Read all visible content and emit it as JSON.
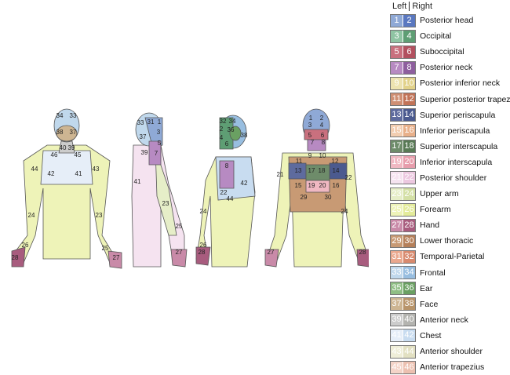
{
  "legend": {
    "left_label": "Left",
    "right_label": "Right",
    "items": [
      {
        "left": "1",
        "right": "2",
        "label": "Posterior head",
        "colors": [
          "#8fa9d6",
          "#5a78c0"
        ]
      },
      {
        "left": "3",
        "right": "4",
        "label": "Occipital",
        "colors": [
          "#8fc4a3",
          "#5e9e74"
        ]
      },
      {
        "left": "5",
        "right": "6",
        "label": "Suboccipital",
        "colors": [
          "#c9707e",
          "#b2505f"
        ]
      },
      {
        "left": "7",
        "right": "8",
        "label": "Posterior neck",
        "colors": [
          "#b78ac2",
          "#8e5f9e"
        ]
      },
      {
        "left": "9",
        "right": "10",
        "label": "Posterior inferior neck",
        "colors": [
          "#ede3b0",
          "#e2d28a"
        ]
      },
      {
        "left": "11",
        "right": "12",
        "label": "Superior posterior trapezius",
        "colors": [
          "#cf8f73",
          "#c27458"
        ]
      },
      {
        "left": "13",
        "right": "14",
        "label": "Superior periscapula",
        "colors": [
          "#5e6b9e",
          "#4b5a8f"
        ]
      },
      {
        "left": "15",
        "right": "16",
        "label": "Inferior periscapula",
        "colors": [
          "#f2cdb0",
          "#e8b08a"
        ]
      },
      {
        "left": "17",
        "right": "18",
        "label": "Superior interscapula",
        "colors": [
          "#6e8c6a",
          "#587a55"
        ]
      },
      {
        "left": "19",
        "right": "20",
        "label": "Inferior interscapula",
        "colors": [
          "#f0b8c2",
          "#e79dac"
        ]
      },
      {
        "left": "21",
        "right": "22",
        "label": "Posterior shoulder",
        "colors": [
          "#f5e3f0",
          "#ecc8e0"
        ]
      },
      {
        "left": "23",
        "right": "24",
        "label": "Upper arm",
        "colors": [
          "#e6eec8",
          "#d4e0a6"
        ]
      },
      {
        "left": "25",
        "right": "26",
        "label": "Forearm",
        "colors": [
          "#eef3b8",
          "#e3eb9a"
        ]
      },
      {
        "left": "27",
        "right": "28",
        "label": "Hand",
        "colors": [
          "#c98aa8",
          "#a85c7e"
        ]
      },
      {
        "left": "29",
        "right": "30",
        "label": "Lower thoracic",
        "colors": [
          "#c89a74",
          "#b5805a"
        ]
      },
      {
        "left": "31",
        "right": "32",
        "label": "Temporal-Parietal",
        "colors": [
          "#eaa88e",
          "#d88a6e"
        ]
      },
      {
        "left": "33",
        "right": "34",
        "label": "Frontal",
        "colors": [
          "#c0d8ec",
          "#98bee0"
        ]
      },
      {
        "left": "35",
        "right": "36",
        "label": "Ear",
        "colors": [
          "#8fbe85",
          "#6aa062"
        ]
      },
      {
        "left": "37",
        "right": "38",
        "label": "Face",
        "colors": [
          "#cdb592",
          "#b8946a"
        ]
      },
      {
        "left": "39",
        "right": "40",
        "label": "Anterior neck",
        "colors": [
          "#cccccc",
          "#b4b4b0"
        ]
      },
      {
        "left": "41",
        "right": "42",
        "label": "Chest",
        "colors": [
          "#e6eef8",
          "#c8dcf0"
        ]
      },
      {
        "left": "43",
        "right": "44",
        "label": "Anterior shoulder",
        "colors": [
          "#efeed8",
          "#e2e0c2"
        ]
      },
      {
        "left": "45",
        "right": "46",
        "label": "Anterior trapezius",
        "colors": [
          "#f4d4c8",
          "#ecc0b0"
        ]
      }
    ]
  },
  "figures": {
    "anterior": [
      "34",
      "33",
      "38",
      "37",
      "40",
      "39",
      "46",
      "45",
      "44",
      "43",
      "42",
      "41",
      "24",
      "23",
      "26",
      "25",
      "28",
      "27"
    ],
    "lateral": [
      "33",
      "31",
      "1",
      "3",
      "37",
      "5",
      "39",
      "7",
      "41",
      "23",
      "25",
      "27"
    ],
    "oblique": [
      "32",
      "34",
      "2",
      "4",
      "36",
      "38",
      "6",
      "8",
      "22",
      "44",
      "42",
      "24",
      "26",
      "28"
    ],
    "posterior": [
      "1",
      "2",
      "3",
      "4",
      "5",
      "6",
      "7",
      "8",
      "9",
      "10",
      "11",
      "12",
      "13",
      "14",
      "17",
      "18",
      "15",
      "16",
      "19",
      "20",
      "21",
      "22",
      "29",
      "30",
      "24",
      "27",
      "28"
    ]
  }
}
